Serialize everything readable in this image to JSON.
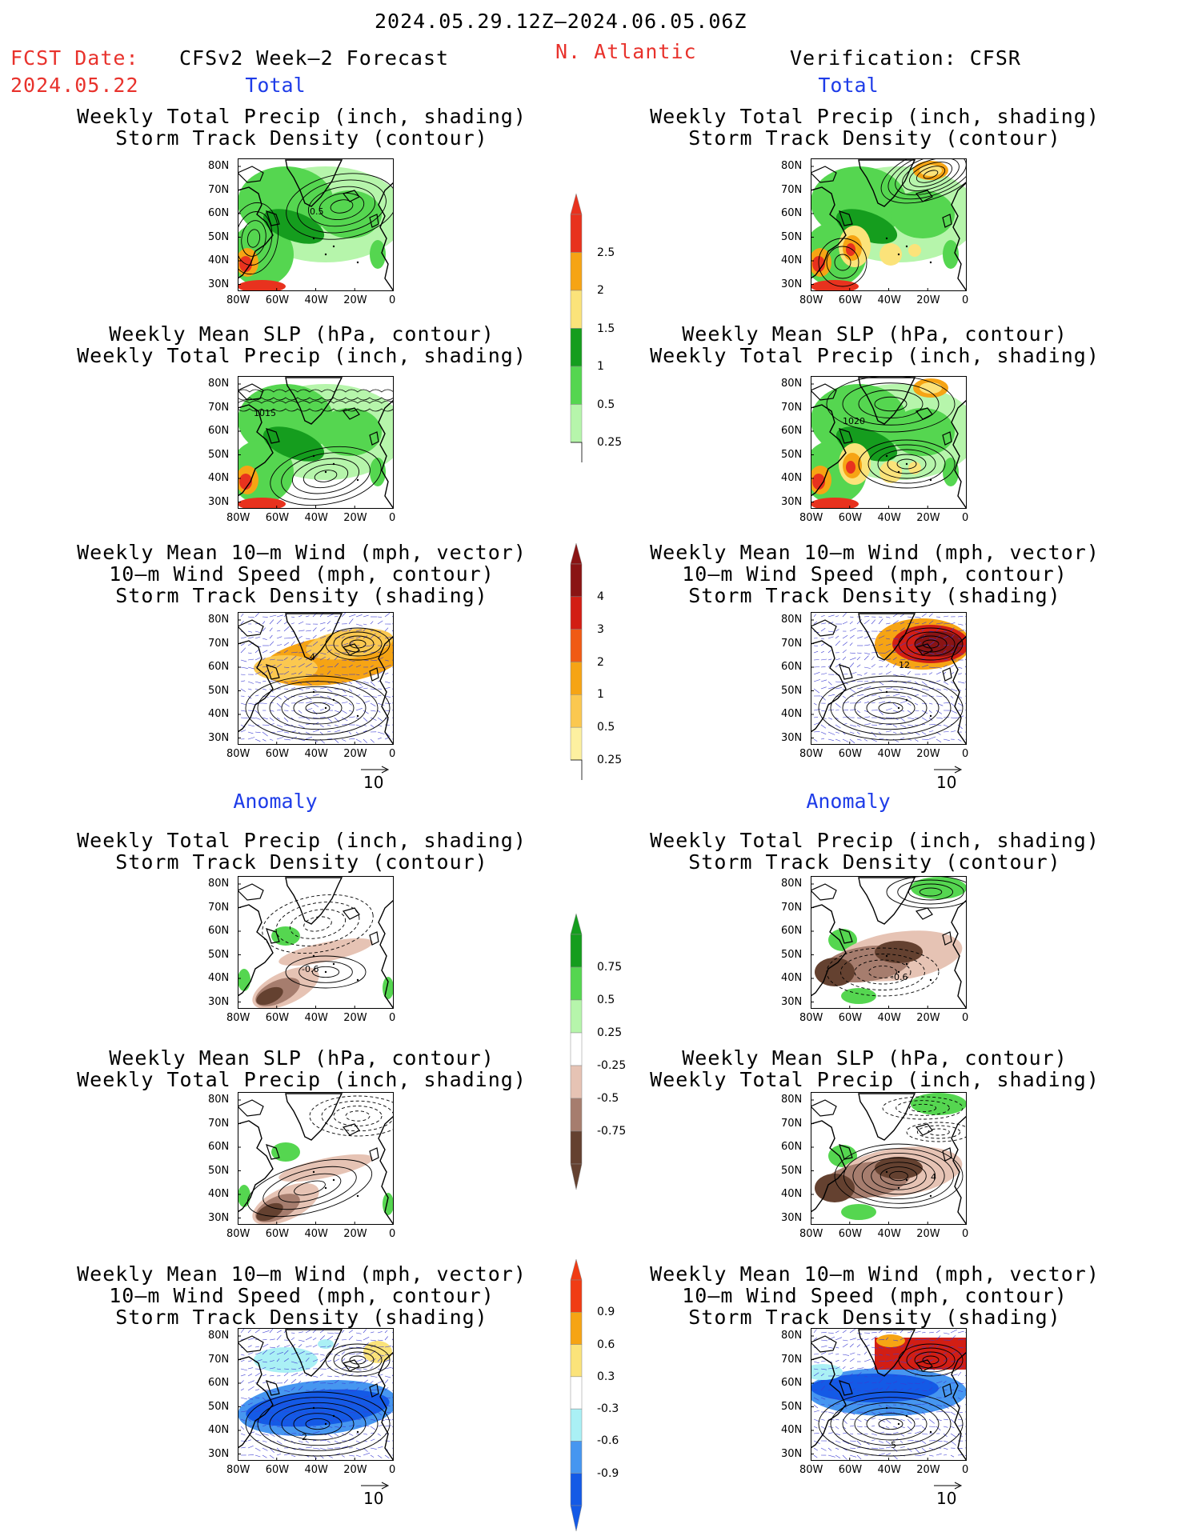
{
  "header": {
    "period": "2024.05.29.12Z–2024.06.05.06Z",
    "fcst_label": "FCST Date:",
    "fcst_date": "2024.05.22",
    "model": "CFSv2 Week–2 Forecast",
    "region": "N. Atlantic",
    "verification": "Verification: CFSR"
  },
  "sections": {
    "total": "Total",
    "anomaly": "Anomaly"
  },
  "axes": {
    "lat": [
      "80N",
      "70N",
      "60N",
      "50N",
      "40N",
      "30N"
    ],
    "lon": [
      "80W",
      "60W",
      "40W",
      "20W",
      "0"
    ]
  },
  "vector_ref": "10",
  "rows": [
    {
      "title": [
        "Weekly Total Precip (inch, shading)",
        "Storm Track Density (contour)"
      ],
      "kind": "precip",
      "anomaly": false,
      "labels": [
        "0.5",
        ""
      ],
      "ref": false
    },
    {
      "title": [
        "Weekly Mean SLP (hPa, contour)",
        "Weekly Total Precip (inch, shading)"
      ],
      "kind": "slp",
      "anomaly": false,
      "labels": [
        "1015",
        "1020"
      ],
      "ref": false
    },
    {
      "title": [
        "Weekly Mean 10–m Wind (mph, vector)",
        "10–m Wind Speed (mph, contour)",
        "Storm Track Density (shading)"
      ],
      "kind": "wind",
      "anomaly": false,
      "labels": [
        "4",
        "12"
      ],
      "ref": true
    },
    {
      "title": [
        "Weekly Total Precip (inch, shading)",
        "Storm Track Density (contour)"
      ],
      "kind": "precip",
      "anomaly": true,
      "labels": [
        "-0.6",
        "-0.6"
      ],
      "ref": false
    },
    {
      "title": [
        "Weekly Mean SLP (hPa, contour)",
        "Weekly Total Precip (inch, shading)"
      ],
      "kind": "slp",
      "anomaly": true,
      "labels": [
        "",
        "4"
      ],
      "ref": false
    },
    {
      "title": [
        "Weekly Mean 10–m Wind (mph, vector)",
        "10–m Wind Speed (mph, contour)",
        "Storm Track Density (shading)"
      ],
      "kind": "wind",
      "anomaly": true,
      "labels": [
        "2",
        "5"
      ],
      "ref": true
    }
  ],
  "colorbars": [
    {
      "labels": [
        "2.5",
        "2",
        "1.5",
        "1",
        "0.5",
        "0.25"
      ],
      "colors": [
        "#e8321e",
        "#f6a414",
        "#fbe37a",
        "#159d1e",
        "#55d650",
        "#b6f5ab"
      ],
      "tail": "#b6f5ab"
    },
    {
      "labels": [
        "4",
        "3",
        "2",
        "1",
        "0.5",
        "0.25"
      ],
      "colors": [
        "#8a1414",
        "#d21e14",
        "#f05a14",
        "#f6a414",
        "#fbc850",
        "#fdf0a0"
      ],
      "tail": "#fdf0a0"
    },
    {
      "labels": [
        "0.75",
        "0.5",
        "0.25",
        "-0.25",
        "-0.5",
        "-0.75"
      ],
      "colors": [
        "#159d1e",
        "#55d650",
        "#b6f5ab",
        "#ffffff",
        "#e6c3b4",
        "#a67d6e",
        "#644130"
      ],
      "tail": "#644130"
    },
    {
      "labels": [
        "0.9",
        "0.6",
        "0.3",
        "-0.3",
        "-0.6",
        "-0.9"
      ],
      "colors": [
        "#f03c14",
        "#f6a414",
        "#fbe37a",
        "#ffffff",
        "#aaf0f5",
        "#4696f0",
        "#145ae6"
      ],
      "tail": "#145ae6"
    }
  ],
  "colors": {
    "precip_light": "#b6f5ab",
    "precip_mid": "#55d650",
    "precip_dark": "#159d1e",
    "heavy_yellow": "#fbe37a",
    "heavy_orange": "#f6a414",
    "heavy_red": "#e8321e",
    "dry_light": "#e6c3b4",
    "dry_mid": "#a67d6e",
    "dry_dark": "#644130",
    "track_orange": "#f6a414",
    "track_red": "#d21e14",
    "track_dark": "#8a1414",
    "neg_blue": "#145ae6",
    "neg_light": "#aaf0f5",
    "wind_vec": "#3c3cd2"
  }
}
